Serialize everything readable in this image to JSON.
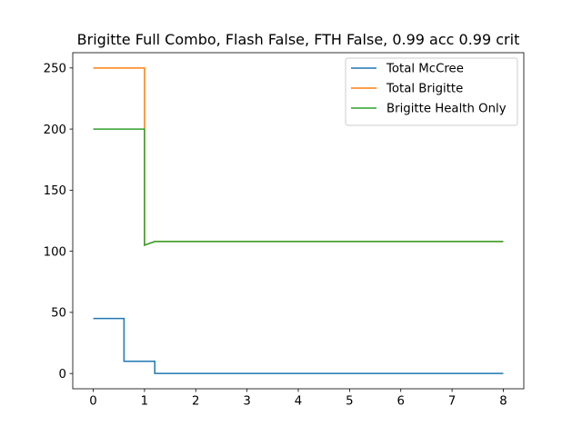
{
  "chart_data": {
    "type": "line",
    "title": "Brigitte Full Combo, Flash False, FTH False, 0.99 acc 0.99 crit",
    "xlabel": "",
    "ylabel": "",
    "xlim": [
      -0.4,
      8.4
    ],
    "ylim": [
      -12.5,
      262.5
    ],
    "x_ticks": [
      0,
      1,
      2,
      3,
      4,
      5,
      6,
      7,
      8
    ],
    "y_ticks": [
      0,
      50,
      100,
      150,
      200,
      250
    ],
    "grid": false,
    "legend_position": "top-right",
    "series": [
      {
        "name": "Total McCree",
        "color": "#1f77b4",
        "points": [
          [
            0,
            45
          ],
          [
            0.6,
            45
          ],
          [
            0.6,
            10
          ],
          [
            1.2,
            10
          ],
          [
            1.2,
            0
          ],
          [
            8,
            0
          ]
        ]
      },
      {
        "name": "Total Brigitte",
        "color": "#ff7f0e",
        "points": [
          [
            0,
            250
          ],
          [
            1.0,
            250
          ],
          [
            1.0,
            105
          ],
          [
            1.2,
            108
          ],
          [
            8,
            108
          ]
        ]
      },
      {
        "name": "Brigitte Health Only",
        "color": "#2ca02c",
        "points": [
          [
            0,
            200
          ],
          [
            1.0,
            200
          ],
          [
            1.0,
            105
          ],
          [
            1.2,
            108
          ],
          [
            8,
            108
          ]
        ]
      }
    ]
  }
}
